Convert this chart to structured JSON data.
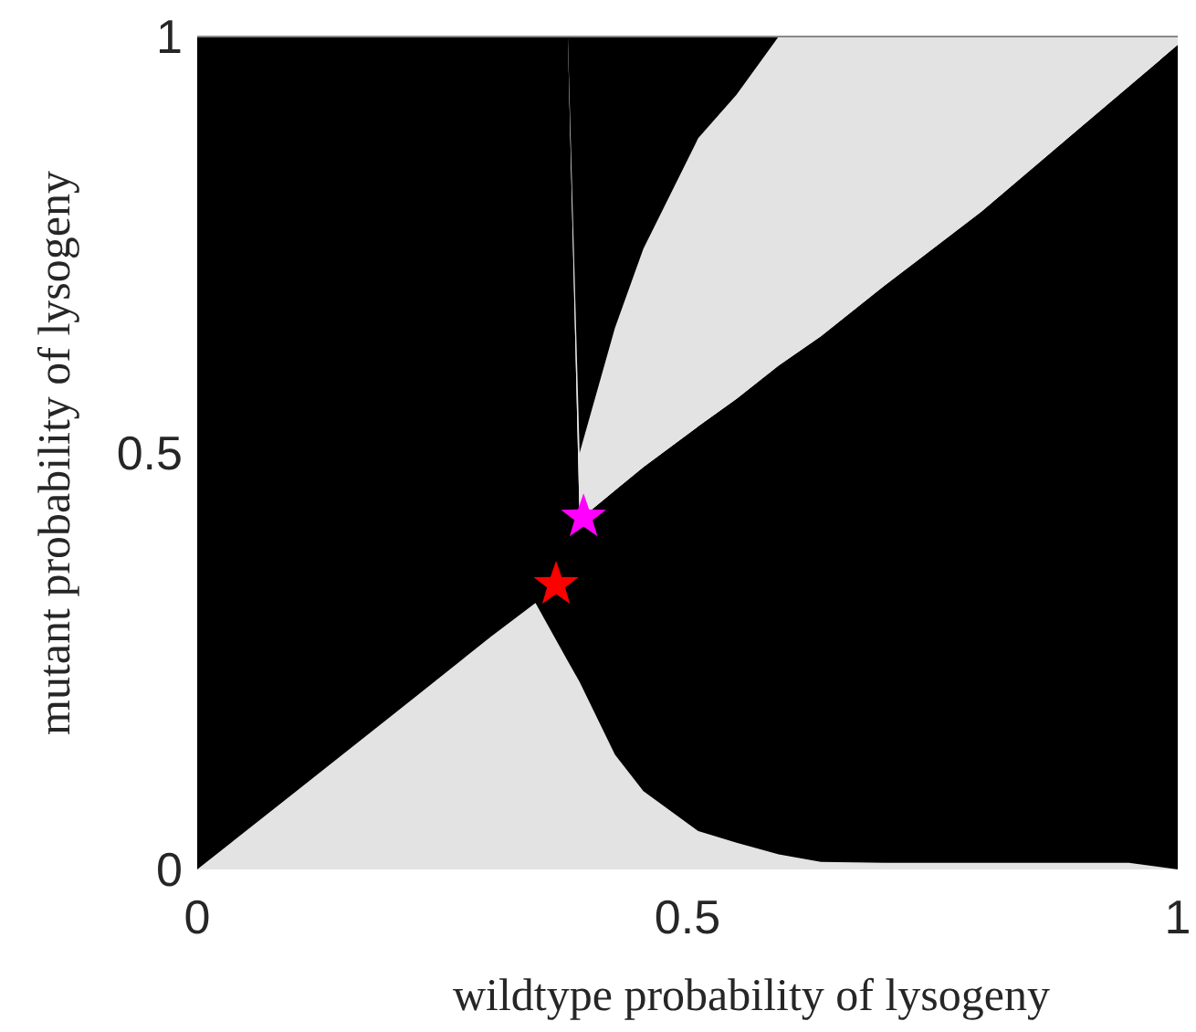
{
  "chart_data": {
    "type": "area",
    "stacked": true,
    "xlabel": "wildtype probability of lysogeny",
    "ylabel": "mutant probability of lysogeny",
    "xlim": [
      0,
      1
    ],
    "ylim": [
      0,
      1
    ],
    "xticks": [
      0,
      0.5,
      1
    ],
    "yticks": [
      0,
      0.5,
      1
    ],
    "grid": false,
    "x": [
      0,
      0.1,
      0.2,
      0.3,
      0.345,
      0.378,
      0.39,
      0.426,
      0.455,
      0.511,
      0.55,
      0.593,
      0.636,
      0.7,
      0.8,
      0.9,
      0.95,
      1
    ],
    "series": [
      {
        "color": "#e3e3e3",
        "values": [
          0,
          0.093,
          0.186,
          0.28,
          0.32,
          0.25,
          0.225,
          0.138,
          0.094,
          0.046,
          0.032,
          0.018,
          0.009,
          0.008,
          0.008,
          0.008,
          0.008,
          0
        ]
      },
      {
        "color": "#000000",
        "values": [
          1,
          0.907,
          0.814,
          0.72,
          0.68,
          0.75,
          0.195,
          0.317,
          0.389,
          0.486,
          0.533,
          0.587,
          0.631,
          0.692,
          0.782,
          0.882,
          0.932,
          0.99
        ]
      },
      {
        "color": "#e3e3e3",
        "values": [
          0,
          0,
          0,
          0,
          0,
          0,
          0.08,
          0.195,
          0.262,
          0.346,
          0.365,
          0.395,
          0.36,
          0.3,
          0.21,
          0.11,
          0.06,
          0.01
        ]
      },
      {
        "color": "#000000",
        "values": [
          0,
          0,
          0,
          0,
          0,
          0,
          0.5,
          0.35,
          0.255,
          0.122,
          0.07,
          0,
          0,
          0,
          0,
          0,
          0,
          0
        ]
      },
      {
        "type": "scatter",
        "marker": "star",
        "color": "#ff00ff",
        "x": [
          0.394
        ],
        "values": [
          0.423
        ]
      },
      {
        "type": "scatter",
        "marker": "star",
        "color": "#ff0000",
        "x": [
          0.366
        ],
        "values": [
          0.342
        ]
      }
    ]
  }
}
